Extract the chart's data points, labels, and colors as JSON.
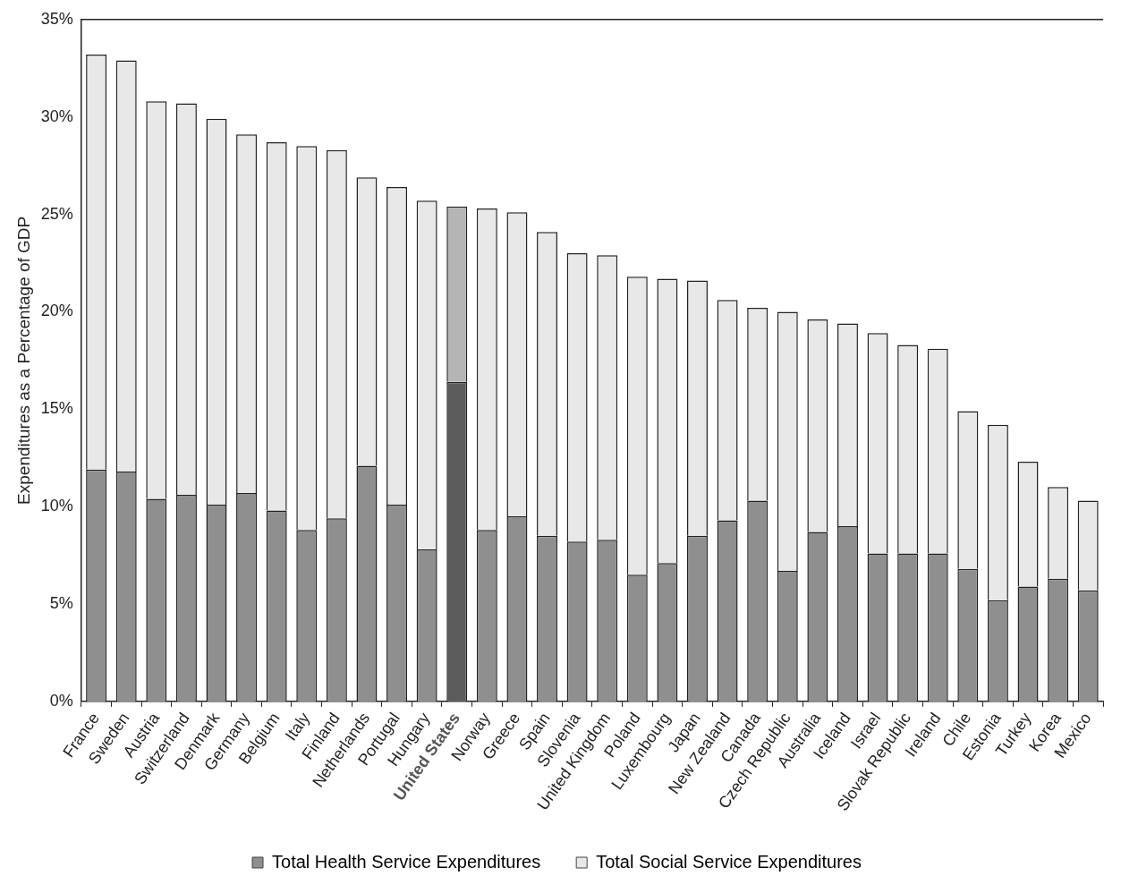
{
  "chart_data": {
    "type": "bar",
    "stacked": true,
    "ylabel": "Expenditures as a Percentage of GDP",
    "categories": [
      "France",
      "Sweden",
      "Austria",
      "Switzerland",
      "Denmark",
      "Germany",
      "Belgium",
      "Italy",
      "Finland",
      "Netherlands",
      "Portugal",
      "Hungary",
      "United States",
      "Norway",
      "Greece",
      "Spain",
      "Slovenia",
      "United Kingdom",
      "Poland",
      "Luxembourg",
      "Japan",
      "New Zealand",
      "Canada",
      "Czech Republic",
      "Australia",
      "Iceland",
      "Israel",
      "Slovak Republic",
      "Ireland",
      "Chile",
      "Estonia",
      "Turkey",
      "Korea",
      "Mexico"
    ],
    "series": [
      {
        "name": "Total Health Service Expenditures",
        "color": "#8f8f8f",
        "colors": [
          "#8f8f8f",
          "#8f8f8f",
          "#8f8f8f",
          "#8f8f8f",
          "#8f8f8f",
          "#8f8f8f",
          "#8f8f8f",
          "#8f8f8f",
          "#8f8f8f",
          "#8f8f8f",
          "#8f8f8f",
          "#8f8f8f",
          "#5c5c5c",
          "#8f8f8f",
          "#8f8f8f",
          "#8f8f8f",
          "#8f8f8f",
          "#8f8f8f",
          "#8f8f8f",
          "#8f8f8f",
          "#8f8f8f",
          "#8f8f8f",
          "#8f8f8f",
          "#8f8f8f",
          "#8f8f8f",
          "#8f8f8f",
          "#8f8f8f",
          "#8f8f8f",
          "#8f8f8f",
          "#8f8f8f",
          "#8f8f8f",
          "#8f8f8f",
          "#8f8f8f",
          "#8f8f8f"
        ],
        "values": [
          11.9,
          11.8,
          10.4,
          10.6,
          10.1,
          10.7,
          9.8,
          8.8,
          9.4,
          12.1,
          10.1,
          7.8,
          16.4,
          8.8,
          9.5,
          8.5,
          8.2,
          8.3,
          6.5,
          7.1,
          8.5,
          9.3,
          10.3,
          6.7,
          8.7,
          9.0,
          7.6,
          7.6,
          7.6,
          6.8,
          5.2,
          5.9,
          6.3,
          5.7
        ]
      },
      {
        "name": "Total Social Service Expenditures",
        "color": "#e8e8e8",
        "colors": [
          "#e8e8e8",
          "#e8e8e8",
          "#e8e8e8",
          "#e8e8e8",
          "#e8e8e8",
          "#e8e8e8",
          "#e8e8e8",
          "#e8e8e8",
          "#e8e8e8",
          "#e8e8e8",
          "#e8e8e8",
          "#e8e8e8",
          "#b5b5b5",
          "#e8e8e8",
          "#e8e8e8",
          "#e8e8e8",
          "#e8e8e8",
          "#e8e8e8",
          "#e8e8e8",
          "#e8e8e8",
          "#e8e8e8",
          "#e8e8e8",
          "#e8e8e8",
          "#e8e8e8",
          "#e8e8e8",
          "#e8e8e8",
          "#e8e8e8",
          "#e8e8e8",
          "#e8e8e8",
          "#e8e8e8",
          "#e8e8e8",
          "#e8e8e8",
          "#e8e8e8",
          "#e8e8e8"
        ],
        "values": [
          21.3,
          21.1,
          20.4,
          20.1,
          19.8,
          18.4,
          18.9,
          19.7,
          18.9,
          14.8,
          16.3,
          17.9,
          9.0,
          16.5,
          15.6,
          15.6,
          14.8,
          14.6,
          15.3,
          14.6,
          13.1,
          11.3,
          9.9,
          13.3,
          10.9,
          10.4,
          11.3,
          10.7,
          10.5,
          8.1,
          9.0,
          6.4,
          4.7,
          4.6
        ]
      }
    ],
    "ylim": [
      0,
      35
    ],
    "yticks": [
      {
        "value": 0,
        "label": "0%"
      },
      {
        "value": 5,
        "label": "5%"
      },
      {
        "value": 10,
        "label": "10%"
      },
      {
        "value": 15,
        "label": "15%"
      },
      {
        "value": 20,
        "label": "20%"
      },
      {
        "value": 25,
        "label": "25%"
      },
      {
        "value": 30,
        "label": "30%"
      },
      {
        "value": 35,
        "label": "35%"
      }
    ],
    "grid": false,
    "legend": "bottom"
  }
}
